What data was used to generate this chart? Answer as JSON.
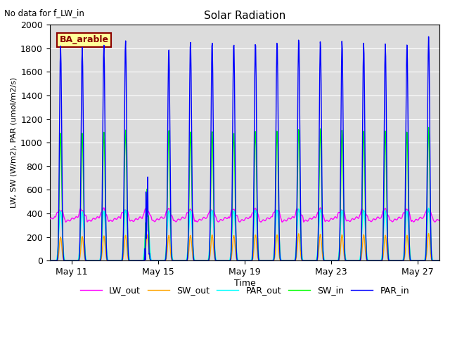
{
  "title": "Solar Radiation",
  "subtitle": "No data for f_LW_in",
  "xlabel": "Time",
  "ylabel": "LW, SW (W/m2), PAR (umol/m2/s)",
  "legend_label": "BA_arable",
  "legend_box_color": "#ffff99",
  "legend_box_edge": "#8B0000",
  "background_color": "#dcdcdc",
  "ylim": [
    0,
    2000
  ],
  "series": {
    "LW_out": {
      "color": "#ff00ff",
      "lw": 1.0
    },
    "PAR_in": {
      "color": "#0000ff",
      "lw": 1.0
    },
    "PAR_out": {
      "color": "#00ffff",
      "lw": 1.0
    },
    "SW_in": {
      "color": "#00ff00",
      "lw": 1.0
    },
    "SW_out": {
      "color": "#ffa500",
      "lw": 1.0
    }
  },
  "x_tick_labels": [
    "May 11",
    "May 15",
    "May 19",
    "May 23",
    "May 27"
  ],
  "x_tick_positions": [
    1,
    5,
    9,
    13,
    17
  ],
  "n_days": 18,
  "start_day": 0
}
